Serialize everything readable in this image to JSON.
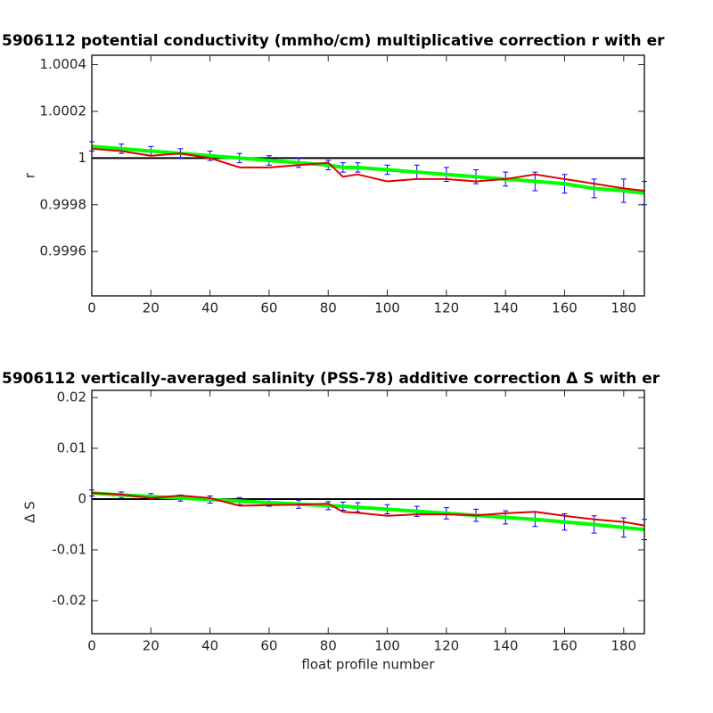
{
  "chart_data": [
    {
      "type": "line",
      "title": "5906112 potential conductivity (mmho/cm) multiplicative correction r with er",
      "ylabel": "r",
      "x": [
        0,
        10,
        20,
        30,
        40,
        50,
        60,
        70,
        80,
        85,
        90,
        100,
        110,
        120,
        130,
        140,
        150,
        160,
        170,
        180,
        187
      ],
      "xlim": [
        0,
        187
      ],
      "ylim": [
        0.99941,
        1.00044
      ],
      "xticks": [
        0,
        20,
        40,
        60,
        80,
        100,
        120,
        140,
        160,
        180
      ],
      "yticks": [
        0.9996,
        0.9998,
        1,
        1.0002,
        1.0004
      ],
      "hline": 1,
      "hline_color": "#000000",
      "series": [
        {
          "color": "#00ff00",
          "error_color": "#0000ff",
          "values": [
            1.00005,
            1.00004,
            1.00003,
            1.00002,
            1.00001,
            1.0,
            0.99999,
            0.99998,
            0.99997,
            0.99996,
            0.99996,
            0.99995,
            0.99994,
            0.99993,
            0.99992,
            0.99991,
            0.9999,
            0.99989,
            0.99987,
            0.99986,
            0.99985
          ],
          "errors": [
            2e-05,
            2e-05,
            2e-05,
            2e-05,
            2e-05,
            2e-05,
            2e-05,
            2e-05,
            2e-05,
            2e-05,
            2e-05,
            2e-05,
            3e-05,
            3e-05,
            3e-05,
            3e-05,
            4e-05,
            4e-05,
            4e-05,
            5e-05,
            5e-05
          ]
        },
        {
          "color": "#e00000",
          "values": [
            1.00004,
            1.00003,
            1.00001,
            1.00002,
            1.0,
            0.99996,
            0.99996,
            0.99997,
            0.99998,
            0.99992,
            0.99993,
            0.9999,
            0.99991,
            0.99991,
            0.9999,
            0.99991,
            0.99993,
            0.99991,
            0.99989,
            0.99987,
            0.99986
          ]
        }
      ]
    },
    {
      "type": "line",
      "title": "5906112 vertically-averaged salinity (PSS-78) additive correction Δ S with er",
      "ylabel": "Δ S",
      "xlabel": "float profile number",
      "x": [
        0,
        10,
        20,
        30,
        40,
        50,
        60,
        70,
        80,
        85,
        90,
        100,
        110,
        120,
        130,
        140,
        150,
        160,
        170,
        180,
        187
      ],
      "xlim": [
        0,
        187
      ],
      "ylim": [
        -0.0265,
        0.0214
      ],
      "xticks": [
        0,
        20,
        40,
        60,
        80,
        100,
        120,
        140,
        160,
        180
      ],
      "yticks": [
        -0.02,
        -0.01,
        0,
        0.01,
        0.02
      ],
      "hline": 0,
      "hline_color": "#000000",
      "series": [
        {
          "color": "#00ff00",
          "error_color": "#0000ff",
          "values": [
            0.0012,
            0.0008,
            0.0005,
            0.0002,
            -0.0001,
            -0.0004,
            -0.0007,
            -0.001,
            -0.0013,
            -0.0014,
            -0.0016,
            -0.002,
            -0.0024,
            -0.0028,
            -0.0032,
            -0.0036,
            -0.004,
            -0.0045,
            -0.005,
            -0.0056,
            -0.006
          ],
          "errors": [
            0.0006,
            0.0006,
            0.0006,
            0.0006,
            0.0007,
            0.0007,
            0.0007,
            0.0008,
            0.0008,
            0.0008,
            0.0009,
            0.0009,
            0.001,
            0.0011,
            0.0012,
            0.0013,
            0.0014,
            0.0016,
            0.0017,
            0.0019,
            0.002
          ]
        },
        {
          "color": "#e00000",
          "values": [
            0.0012,
            0.0009,
            0.0002,
            0.0007,
            0.0002,
            -0.0013,
            -0.0012,
            -0.0011,
            -0.0009,
            -0.0025,
            -0.0027,
            -0.0033,
            -0.003,
            -0.003,
            -0.0032,
            -0.0028,
            -0.0025,
            -0.0033,
            -0.004,
            -0.0045,
            -0.0052
          ]
        }
      ]
    }
  ]
}
